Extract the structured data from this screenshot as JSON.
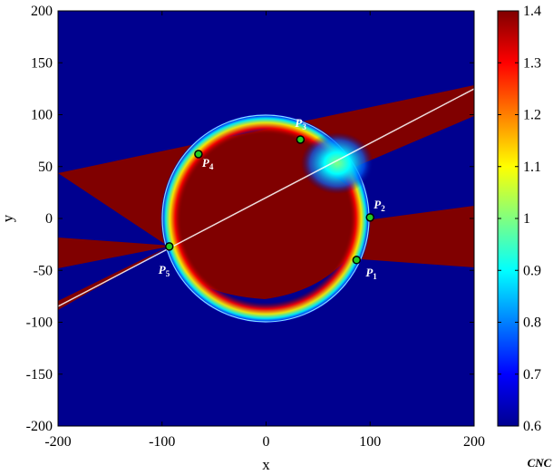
{
  "chart_data": {
    "type": "heatmap",
    "xlabel": "x",
    "ylabel": "y",
    "xlim": [
      -200,
      200
    ],
    "ylim": [
      -200,
      200
    ],
    "x_ticks": [
      "-200",
      "-100",
      "0",
      "100",
      "200"
    ],
    "y_ticks": [
      "200",
      "150",
      "100",
      "50",
      "0",
      "-50",
      "-100",
      "-150",
      "-200"
    ],
    "colorbar": {
      "min": 0.6,
      "max": 1.4,
      "ticks": [
        "1.4",
        "1.3",
        "1.2",
        "1.1",
        "1",
        "0.9",
        "0.8",
        "0.7",
        "0.6"
      ],
      "label": "CNC",
      "colormap": "jet"
    },
    "circle": {
      "center_x": 0,
      "center_y": 0,
      "radius": 100
    },
    "points": [
      {
        "label": "P1",
        "x": 87,
        "y": -40
      },
      {
        "label": "P2",
        "x": 100,
        "y": 1
      },
      {
        "label": "P3",
        "x": 33,
        "y": 76
      },
      {
        "label": "P4",
        "x": -65,
        "y": 62
      },
      {
        "label": "P5",
        "x": -93,
        "y": -27
      }
    ],
    "colors": {
      "background": "#00008f",
      "high": "#800000",
      "marker_fill": "#22cc22",
      "marker_edge": "#000000"
    }
  }
}
